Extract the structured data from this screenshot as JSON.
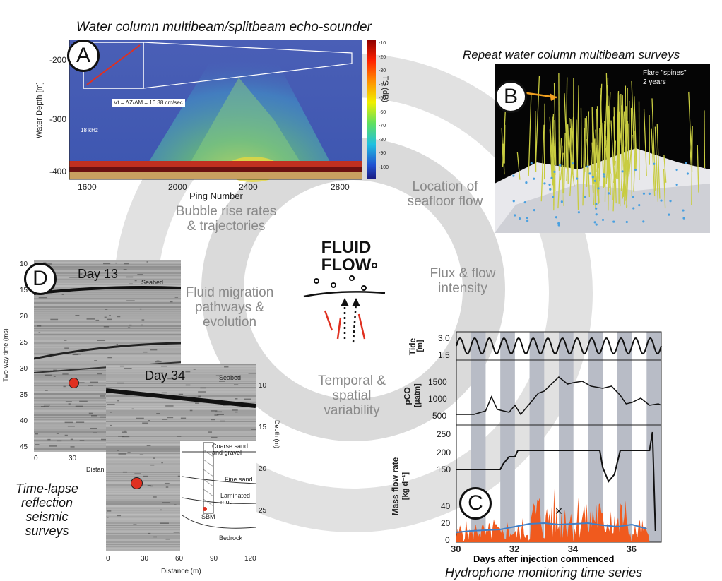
{
  "titles": {
    "a": "Water column multibeam/splitbeam echo-sounder",
    "b": "Repeat water column multibeam surveys",
    "c": "Hydrophone monitoring time series",
    "d_lines": [
      "Time-lapse",
      "reflection",
      "seismic",
      "surveys"
    ]
  },
  "center": {
    "line1": "FLUID",
    "line2": "FLOW"
  },
  "ring_labels": {
    "bubble": [
      "Bubble rise rates",
      "& trajectories"
    ],
    "location": [
      "Location of",
      "seafloor flow"
    ],
    "migration": [
      "Fluid migration",
      "pathways &",
      "evolution"
    ],
    "flux": [
      "Flux & flow",
      "intensity"
    ],
    "temporal": [
      "Temporal &",
      "spatial",
      "variability"
    ]
  },
  "panel_labels": {
    "a": "A",
    "b": "B",
    "c": "C",
    "d": "D"
  },
  "panel_a": {
    "ylabel": "Water Depth [m]",
    "xlabel": "Ping Number",
    "yticks": [
      "-200",
      "-300",
      "-400"
    ],
    "xticks": [
      "1600",
      "2000",
      "2400",
      "2800"
    ],
    "colorbar_label": "TS (dB)",
    "colorbar_ticks": [
      "-10",
      "-20",
      "-30",
      "-40",
      "-50",
      "-60",
      "-70",
      "-80",
      "-90",
      "-100"
    ],
    "inset_formula": "Vt = ΔZ/ΔM = 16.38 cm/sec",
    "freq": "18 kHz"
  },
  "panel_b": {
    "annotation": [
      "Flare \"spines\"",
      "2 years"
    ]
  },
  "panel_d": {
    "day13": "Day 13",
    "day34": "Day 34",
    "seabed": "Seabed",
    "ylabel_left": "Two-way time (ms)",
    "yticks_left": [
      "10",
      "15",
      "20",
      "25",
      "30",
      "35",
      "40",
      "45"
    ],
    "xticks_left": [
      "0",
      "30"
    ],
    "xlabel_left": "Distan",
    "ylabel_right": "Depth (m)",
    "yticks_right": [
      "10",
      "15",
      "20",
      "25"
    ],
    "xticks_right": [
      "0",
      "30",
      "60",
      "90",
      "120"
    ],
    "xlabel_right": "Distance (m)",
    "layers": [
      "Coarse sand and gravel",
      "Fine sand",
      "Laminated mud",
      "SBM",
      "Bedrock"
    ]
  },
  "panel_c": {
    "xlabel": "Days after injection commenced",
    "xticks": [
      "30",
      "32",
      "34",
      "36"
    ],
    "tide_label": [
      "Tide",
      "[m]"
    ],
    "tide_ticks": [
      "3.0",
      "1.5"
    ],
    "pco2_label": [
      "pCO",
      "[μatm]"
    ],
    "pco2_ticks": [
      "1500",
      "1000",
      "500"
    ],
    "flow_label": [
      "Mass flow rate",
      "[kg d⁻¹]"
    ],
    "flow_ticks_top": [
      "250",
      "200",
      "150"
    ],
    "flow_ticks_bottom": [
      "40",
      "20",
      "0"
    ],
    "marker": "×"
  },
  "colors": {
    "ring": "#dcdcdc",
    "flow_fill": "#f05a1e",
    "trend": "#3f7fc8",
    "seep_red": "#e03020"
  }
}
